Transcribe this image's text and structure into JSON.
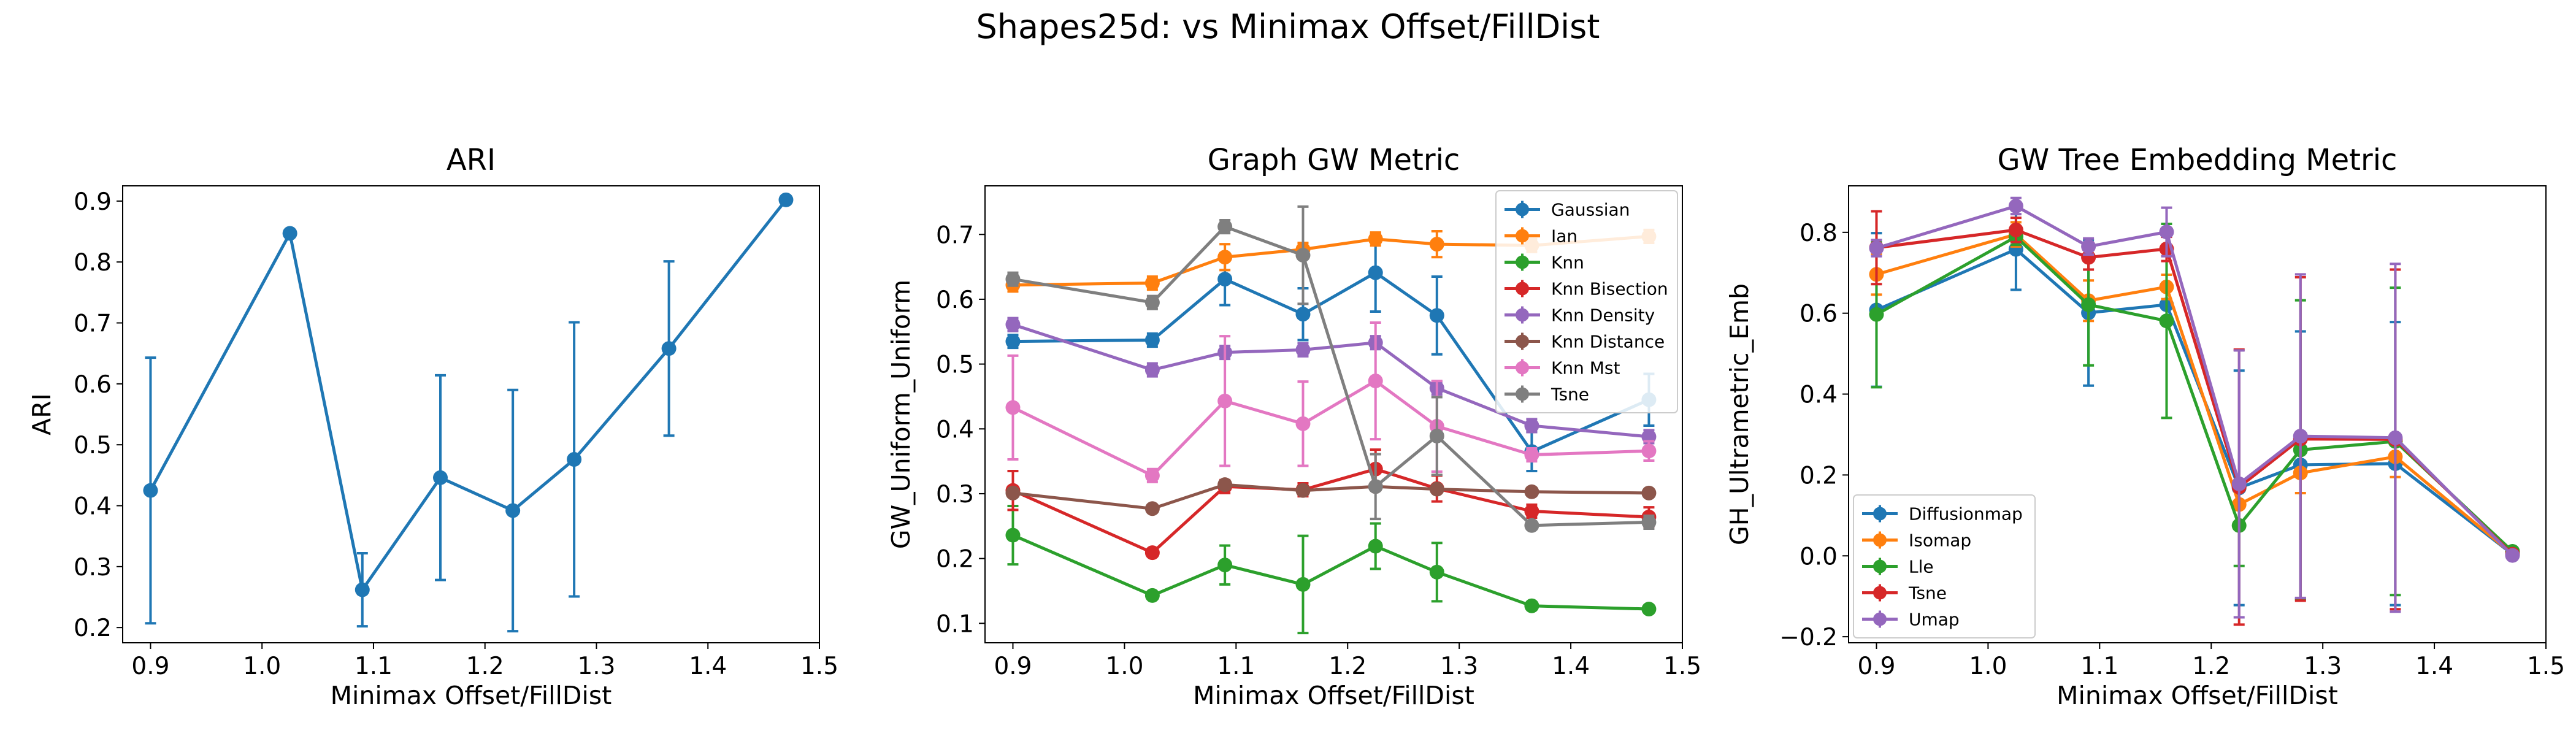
{
  "suptitle": "Shapes25d: vs Minimax Offset/FillDist",
  "colors": {
    "blue": "#1f77b4",
    "orange": "#ff7f0e",
    "green": "#2ca02c",
    "red": "#d62728",
    "purple": "#9467bd",
    "brown": "#8c564b",
    "pink": "#e377c2",
    "gray": "#7f7f7f"
  },
  "chart_data": [
    {
      "type": "line",
      "title": "ARI",
      "xlabel": "Minimax Offset/FillDist",
      "ylabel": "ARI",
      "xlim": [
        0.875,
        1.5
      ],
      "ylim": [
        0.175,
        0.925
      ],
      "xticks": [
        0.9,
        1.0,
        1.1,
        1.2,
        1.3,
        1.4,
        1.5
      ],
      "yticks": [
        0.2,
        0.3,
        0.4,
        0.5,
        0.6,
        0.7,
        0.8,
        0.9
      ],
      "grid": false,
      "legend": false,
      "x": [
        0.9,
        1.025,
        1.09,
        1.16,
        1.225,
        1.28,
        1.365,
        1.47
      ],
      "series": [
        {
          "color": "#1f77b4",
          "values": [
            0.425,
            0.847,
            0.262,
            0.446,
            0.392,
            0.476,
            0.658,
            0.902
          ],
          "errors": [
            0.218,
            0.0,
            0.06,
            0.168,
            0.198,
            0.225,
            0.143,
            0.0
          ]
        }
      ]
    },
    {
      "type": "line",
      "title": "Graph GW Metric",
      "xlabel": "Minimax Offset/FillDist",
      "ylabel": "GW_Uniform_Uniform",
      "xlim": [
        0.875,
        1.5
      ],
      "ylim": [
        0.07,
        0.775
      ],
      "xticks": [
        0.9,
        1.0,
        1.1,
        1.2,
        1.3,
        1.4,
        1.5
      ],
      "yticks": [
        0.1,
        0.2,
        0.3,
        0.4,
        0.5,
        0.6,
        0.7
      ],
      "grid": false,
      "legend": "top-right",
      "x": [
        0.9,
        1.025,
        1.09,
        1.16,
        1.225,
        1.28,
        1.365,
        1.47
      ],
      "series": [
        {
          "name": "Gaussian",
          "color": "#1f77b4",
          "values": [
            0.535,
            0.537,
            0.631,
            0.577,
            0.641,
            0.575,
            0.365,
            0.445
          ],
          "errors": [
            0.01,
            0.01,
            0.04,
            0.04,
            0.06,
            0.06,
            0.03,
            0.04
          ]
        },
        {
          "name": "Ian",
          "color": "#ff7f0e",
          "values": [
            0.622,
            0.625,
            0.665,
            0.677,
            0.693,
            0.685,
            0.683,
            0.697
          ],
          "errors": [
            0.01,
            0.01,
            0.02,
            0.01,
            0.01,
            0.02,
            0.01,
            0.01
          ]
        },
        {
          "name": "Knn",
          "color": "#2ca02c",
          "values": [
            0.236,
            0.143,
            0.19,
            0.16,
            0.219,
            0.179,
            0.127,
            0.122
          ],
          "errors": [
            0.045,
            0.005,
            0.03,
            0.075,
            0.035,
            0.045,
            0.005,
            0.003
          ]
        },
        {
          "name": "Knn Bisection",
          "color": "#d62728",
          "values": [
            0.305,
            0.209,
            0.311,
            0.306,
            0.338,
            0.308,
            0.273,
            0.264
          ],
          "errors": [
            0.03,
            0.005,
            0.01,
            0.01,
            0.03,
            0.02,
            0.01,
            0.015
          ]
        },
        {
          "name": "Knn Density",
          "color": "#9467bd",
          "values": [
            0.561,
            0.491,
            0.518,
            0.522,
            0.533,
            0.463,
            0.405,
            0.388
          ],
          "errors": [
            0.01,
            0.01,
            0.01,
            0.01,
            0.01,
            0.01,
            0.01,
            0.01
          ]
        },
        {
          "name": "Knn Distance",
          "color": "#8c564b",
          "values": [
            0.301,
            0.277,
            0.314,
            0.305,
            0.311,
            0.307,
            0.303,
            0.301
          ],
          "errors": [
            0.005,
            0.005,
            0.005,
            0.005,
            0.005,
            0.005,
            0.005,
            0.005
          ]
        },
        {
          "name": "Knn Mst",
          "color": "#e377c2",
          "values": [
            0.433,
            0.328,
            0.443,
            0.408,
            0.474,
            0.404,
            0.36,
            0.366
          ],
          "errors": [
            0.08,
            0.01,
            0.1,
            0.065,
            0.09,
            0.07,
            0.01,
            0.015
          ]
        },
        {
          "name": "Tsne",
          "color": "#7f7f7f",
          "values": [
            0.631,
            0.595,
            0.712,
            0.668,
            0.311,
            0.389,
            0.251,
            0.256
          ],
          "errors": [
            0.01,
            0.01,
            0.01,
            0.075,
            0.05,
            0.06,
            0.005,
            0.01
          ]
        }
      ]
    },
    {
      "type": "line",
      "title": "GW Tree Embedding Metric",
      "xlabel": "Minimax Offset/FillDist",
      "ylabel": "GH_Ultrametric_Emb",
      "xlim": [
        0.875,
        1.5
      ],
      "ylim": [
        -0.215,
        0.915
      ],
      "xticks": [
        0.9,
        1.0,
        1.1,
        1.2,
        1.3,
        1.4,
        1.5
      ],
      "yticks": [
        -0.2,
        0.0,
        0.2,
        0.4,
        0.6,
        0.8
      ],
      "ytick_labels": [
        "−0.2",
        "0.0",
        "0.2",
        "0.4",
        "0.6",
        "0.8"
      ],
      "grid": false,
      "legend": "bottom-left",
      "x": [
        0.9,
        1.025,
        1.09,
        1.16,
        1.225,
        1.28,
        1.365,
        1.47
      ],
      "series": [
        {
          "name": "Diffusionmap",
          "color": "#1f77b4",
          "values": [
            0.608,
            0.758,
            0.601,
            0.621,
            0.168,
            0.225,
            0.228,
            0.004
          ],
          "errors": [
            0.19,
            0.1,
            0.18,
            0.05,
            0.29,
            0.33,
            0.35,
            0.0
          ]
        },
        {
          "name": "Isomap",
          "color": "#ff7f0e",
          "values": [
            0.696,
            0.795,
            0.631,
            0.665,
            0.127,
            0.205,
            0.245,
            0.004
          ],
          "errors": [
            0.05,
            0.03,
            0.05,
            0.03,
            0.05,
            0.05,
            0.05,
            0.0
          ]
        },
        {
          "name": "Lle",
          "color": "#2ca02c",
          "values": [
            0.597,
            0.789,
            0.621,
            0.581,
            0.075,
            0.262,
            0.283,
            0.011
          ],
          "errors": [
            0.18,
            0.02,
            0.15,
            0.24,
            0.1,
            0.37,
            0.38,
            0.0
          ]
        },
        {
          "name": "Tsne",
          "color": "#d62728",
          "values": [
            0.762,
            0.806,
            0.738,
            0.759,
            0.17,
            0.289,
            0.288,
            0.004
          ],
          "errors": [
            0.09,
            0.03,
            0.03,
            0.03,
            0.34,
            0.4,
            0.42,
            0.0
          ]
        },
        {
          "name": "Umap",
          "color": "#9467bd",
          "values": [
            0.761,
            0.865,
            0.765,
            0.801,
            0.178,
            0.296,
            0.292,
            0.001
          ],
          "errors": [
            0.02,
            0.02,
            0.02,
            0.06,
            0.33,
            0.4,
            0.43,
            0.0
          ]
        }
      ]
    }
  ]
}
